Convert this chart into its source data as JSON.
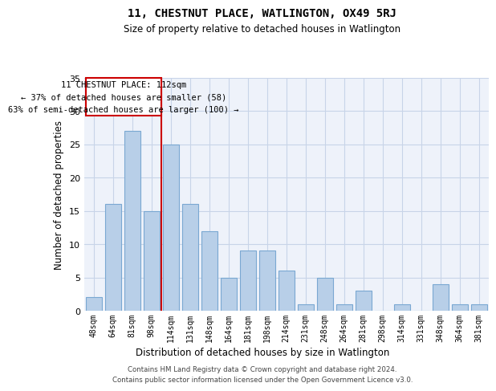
{
  "title": "11, CHESTNUT PLACE, WATLINGTON, OX49 5RJ",
  "subtitle": "Size of property relative to detached houses in Watlington",
  "xlabel": "Distribution of detached houses by size in Watlington",
  "ylabel": "Number of detached properties",
  "categories": [
    "48sqm",
    "64sqm",
    "81sqm",
    "98sqm",
    "114sqm",
    "131sqm",
    "148sqm",
    "164sqm",
    "181sqm",
    "198sqm",
    "214sqm",
    "231sqm",
    "248sqm",
    "264sqm",
    "281sqm",
    "298sqm",
    "314sqm",
    "331sqm",
    "348sqm",
    "364sqm",
    "381sqm"
  ],
  "values": [
    2,
    16,
    27,
    15,
    25,
    16,
    12,
    5,
    9,
    9,
    6,
    1,
    5,
    1,
    3,
    0,
    1,
    0,
    4,
    1,
    1
  ],
  "bar_color": "#b8cfe8",
  "bar_edge_color": "#7aa8d2",
  "grid_color": "#c8d4e8",
  "background_color": "#eef2fa",
  "vline_x": 3.5,
  "vline_color": "#cc0000",
  "annotation_line1": "11 CHESTNUT PLACE: 112sqm",
  "annotation_line2": "← 37% of detached houses are smaller (58)",
  "annotation_line3": "63% of semi-detached houses are larger (100) →",
  "annotation_box_color": "#cc0000",
  "ylim": [
    0,
    35
  ],
  "yticks": [
    0,
    5,
    10,
    15,
    20,
    25,
    30,
    35
  ],
  "footer_line1": "Contains HM Land Registry data © Crown copyright and database right 2024.",
  "footer_line2": "Contains public sector information licensed under the Open Government Licence v3.0."
}
